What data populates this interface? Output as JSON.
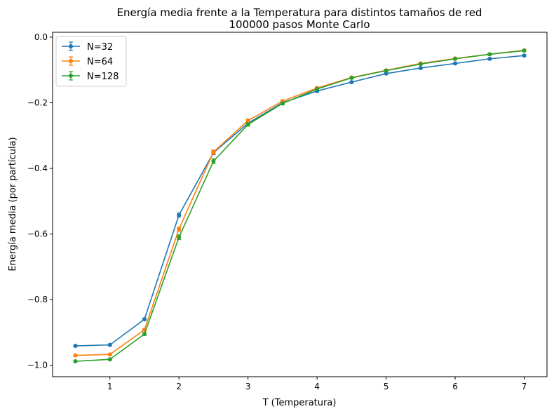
{
  "chart_data": {
    "type": "line",
    "title": "Energía media frente a la Temperatura para distintos tamaños de red",
    "subtitle": "100000 pasos Monte Carlo",
    "xlabel": "T (Temperatura)",
    "ylabel": "Energía media (por partícula)",
    "xlim": [
      0.17,
      7.33
    ],
    "ylim": [
      -1.035,
      0.015
    ],
    "xticks": [
      1,
      2,
      3,
      4,
      5,
      6,
      7
    ],
    "xtick_labels": [
      "1",
      "2",
      "3",
      "4",
      "5",
      "6",
      "7"
    ],
    "yticks": [
      0.0,
      -0.2,
      -0.4,
      -0.6,
      -0.8,
      -1.0
    ],
    "ytick_labels": [
      "0.0",
      "−0.2",
      "−0.4",
      "−0.6",
      "−0.8",
      "−1.0"
    ],
    "grid": false,
    "legend_position": "top-left",
    "error_bars": true,
    "x": [
      0.5,
      1.0,
      1.5,
      2.0,
      2.5,
      3.0,
      3.5,
      4.0,
      4.5,
      5.0,
      5.5,
      6.0,
      6.5,
      7.0
    ],
    "series": [
      {
        "name": "N=32",
        "color": "#1f77b4",
        "values": [
          -0.941,
          -0.938,
          -0.86,
          -0.542,
          -0.352,
          -0.262,
          -0.2,
          -0.164,
          -0.137,
          -0.111,
          -0.094,
          -0.08,
          -0.066,
          -0.056
        ],
        "errors": [
          0.002,
          0.002,
          0.003,
          0.006,
          0.006,
          0.004,
          0.003,
          0.003,
          0.002,
          0.002,
          0.002,
          0.002,
          0.002,
          0.002
        ]
      },
      {
        "name": "N=64",
        "color": "#ff7f0e",
        "values": [
          -0.97,
          -0.967,
          -0.892,
          -0.585,
          -0.35,
          -0.254,
          -0.195,
          -0.155,
          -0.123,
          -0.101,
          -0.08,
          -0.065,
          -0.052,
          -0.04
        ],
        "errors": [
          0.002,
          0.002,
          0.003,
          0.006,
          0.006,
          0.004,
          0.003,
          0.003,
          0.002,
          0.002,
          0.002,
          0.002,
          0.002,
          0.002
        ]
      },
      {
        "name": "N=128",
        "color": "#2ca02c",
        "values": [
          -0.988,
          -0.982,
          -0.905,
          -0.61,
          -0.378,
          -0.266,
          -0.202,
          -0.158,
          -0.124,
          -0.102,
          -0.082,
          -0.066,
          -0.052,
          -0.041
        ],
        "errors": [
          0.002,
          0.002,
          0.004,
          0.007,
          0.007,
          0.005,
          0.004,
          0.003,
          0.003,
          0.002,
          0.002,
          0.002,
          0.002,
          0.002
        ]
      }
    ]
  }
}
